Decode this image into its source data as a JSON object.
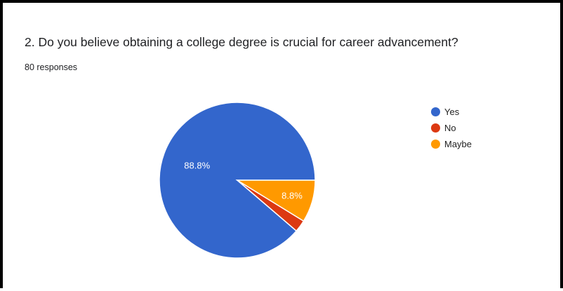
{
  "question": {
    "title": "2. Do you believe obtaining a college degree is crucial for career advancement?",
    "responses": "80 responses"
  },
  "colors": {
    "yes": "#3366cc",
    "no": "#dc3912",
    "maybe": "#ff9900"
  },
  "legend": [
    {
      "label": "Yes",
      "color": "#3366cc"
    },
    {
      "label": "No",
      "color": "#dc3912"
    },
    {
      "label": "Maybe",
      "color": "#ff9900"
    }
  ],
  "chart_data": {
    "type": "pie",
    "title": "2. Do you believe obtaining a college degree is crucial for career advancement?",
    "categories": [
      "Yes",
      "No",
      "Maybe"
    ],
    "values": [
      88.8,
      2.5,
      8.8
    ],
    "data_labels": [
      "88.8%",
      "",
      "8.8%"
    ],
    "colors": [
      "#3366cc",
      "#dc3912",
      "#ff9900"
    ],
    "legend_position": "right"
  }
}
